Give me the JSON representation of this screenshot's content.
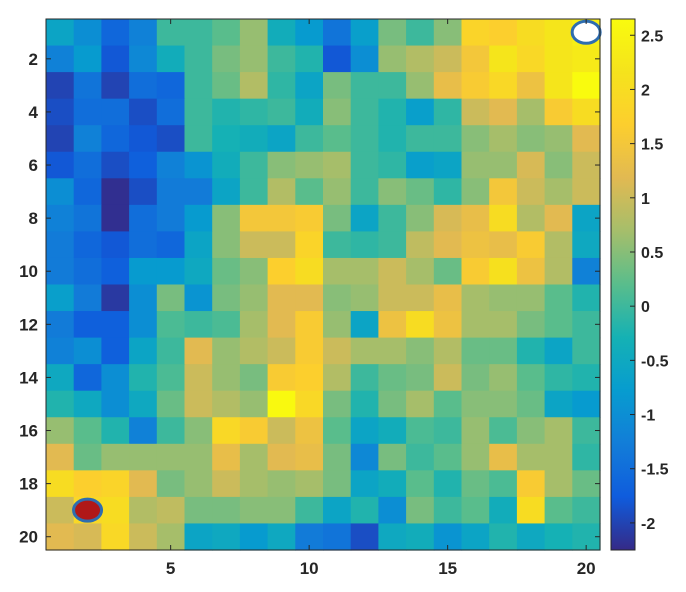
{
  "chart_data": {
    "type": "heatmap",
    "title": "",
    "xlabel": "",
    "ylabel": "",
    "x_ticks": [
      "5",
      "10",
      "15",
      "20"
    ],
    "y_ticks": [
      "2",
      "4",
      "6",
      "8",
      "10",
      "12",
      "14",
      "16",
      "18",
      "20"
    ],
    "xlim": [
      0.5,
      20.5
    ],
    "ylim": [
      0.5,
      20.5
    ],
    "y_direction": "reversed",
    "colorbar": {
      "colormap": "parula",
      "limits": [
        -2.25,
        2.65
      ],
      "ticks": [
        "2.5",
        "2",
        "1.5",
        "1",
        "0.5",
        "0",
        "-0.5",
        "-1",
        "-1.5",
        "-2"
      ],
      "tick_values": [
        2.5,
        2,
        1.5,
        1,
        0.5,
        0,
        -0.5,
        -1,
        -1.5,
        -2
      ]
    },
    "markers": [
      {
        "name": "start",
        "col": 2,
        "row": 19,
        "fill": "#b01818",
        "edge": "#2e6db0"
      },
      {
        "name": "goal",
        "col": 20,
        "row": 1,
        "fill": "#ffffff",
        "edge": "#2e6db0"
      }
    ],
    "values": [
      [
        -0.6,
        -1.0,
        -1.6,
        -1.2,
        0.0,
        0.0,
        0.2,
        0.6,
        -0.4,
        -0.8,
        -1.4,
        -0.7,
        0.4,
        0.0,
        0.5,
        1.8,
        1.7,
        2.0,
        2.2,
        2.4
      ],
      [
        -1.2,
        -0.8,
        -1.8,
        -1.1,
        -0.4,
        0.0,
        0.4,
        0.6,
        0.0,
        -0.2,
        -1.8,
        -1.0,
        0.6,
        0.8,
        1.0,
        1.5,
        2.2,
        1.9,
        2.2,
        2.3
      ],
      [
        -2.0,
        -1.4,
        -2.0,
        -1.5,
        -1.6,
        0.0,
        0.3,
        0.8,
        -0.1,
        -0.6,
        0.4,
        0.0,
        0.0,
        0.6,
        1.3,
        1.6,
        1.9,
        1.4,
        2.2,
        2.7
      ],
      [
        -1.9,
        -1.5,
        -1.5,
        -1.9,
        -1.5,
        0.0,
        -0.2,
        -0.1,
        0.0,
        -0.4,
        0.5,
        0.0,
        -0.2,
        -0.7,
        -0.1,
        1.0,
        1.2,
        0.7,
        1.6,
        2.0
      ],
      [
        -2.0,
        -1.2,
        -1.6,
        -1.8,
        -1.9,
        0.0,
        -0.3,
        -0.4,
        -0.6,
        0.0,
        0.2,
        0.0,
        -0.2,
        0.0,
        0.0,
        0.5,
        0.7,
        0.5,
        0.6,
        1.2
      ],
      [
        -1.8,
        -1.5,
        -1.9,
        -1.7,
        -1.2,
        -0.9,
        -0.4,
        0.0,
        0.5,
        0.6,
        0.7,
        0.0,
        -0.1,
        -0.7,
        -0.6,
        0.6,
        0.6,
        1.1,
        0.5,
        1.0
      ],
      [
        -1.0,
        -1.6,
        -2.2,
        -1.9,
        -1.3,
        -1.3,
        -0.6,
        0.0,
        0.8,
        0.2,
        0.6,
        0.0,
        0.5,
        0.3,
        -0.1,
        0.5,
        1.5,
        1.0,
        0.7,
        1.0
      ],
      [
        -1.2,
        -1.4,
        -2.2,
        -1.5,
        -1.3,
        -0.8,
        0.5,
        1.5,
        1.5,
        1.6,
        0.4,
        -0.6,
        0.0,
        0.5,
        1.1,
        1.3,
        2.0,
        0.8,
        1.2,
        -0.6
      ],
      [
        -1.3,
        -1.6,
        -1.8,
        -1.5,
        -1.6,
        -0.6,
        0.5,
        1.0,
        1.0,
        1.8,
        0.0,
        -0.1,
        0.0,
        0.9,
        1.2,
        1.4,
        1.3,
        1.6,
        0.8,
        -0.5
      ],
      [
        -1.3,
        -1.5,
        -1.7,
        -0.8,
        -0.8,
        -0.5,
        0.3,
        0.5,
        1.7,
        2.0,
        0.7,
        0.7,
        1.0,
        0.7,
        0.3,
        1.6,
        2.1,
        1.4,
        0.8,
        -1.2
      ],
      [
        -0.7,
        -1.3,
        -2.1,
        -1.0,
        0.4,
        -0.9,
        0.4,
        0.6,
        1.2,
        1.2,
        0.5,
        0.6,
        1.0,
        1.0,
        1.3,
        0.7,
        0.6,
        0.6,
        0.2,
        -0.2
      ],
      [
        -1.3,
        -1.7,
        -1.7,
        -1.0,
        0.1,
        0.0,
        0.1,
        0.7,
        1.2,
        1.6,
        0.6,
        -0.6,
        1.4,
        2.0,
        1.4,
        0.7,
        0.7,
        0.4,
        0.2,
        0.0
      ],
      [
        -1.2,
        -1.0,
        -1.7,
        -0.6,
        0.0,
        1.2,
        0.6,
        0.8,
        1.0,
        1.6,
        1.0,
        0.7,
        0.7,
        0.5,
        0.8,
        0.3,
        0.3,
        -0.2,
        -0.6,
        0.0
      ],
      [
        -0.5,
        -1.6,
        -1.0,
        -0.2,
        0.1,
        1.0,
        0.6,
        0.4,
        1.6,
        1.7,
        0.8,
        0.0,
        0.3,
        0.4,
        1.0,
        0.4,
        0.6,
        0.2,
        -0.1,
        -0.2
      ],
      [
        -0.2,
        -0.5,
        -1.0,
        -0.5,
        0.3,
        1.0,
        0.8,
        0.6,
        2.6,
        1.9,
        0.4,
        -0.2,
        0.4,
        0.7,
        0.2,
        0.5,
        0.5,
        0.3,
        -0.6,
        -0.8
      ],
      [
        0.6,
        0.2,
        -0.2,
        -1.2,
        0.0,
        0.5,
        1.9,
        1.6,
        1.0,
        1.4,
        0.2,
        -0.6,
        -0.4,
        0.1,
        0.0,
        0.6,
        0.1,
        0.5,
        0.7,
        0.0
      ],
      [
        1.2,
        0.3,
        0.6,
        0.6,
        0.6,
        0.6,
        1.3,
        0.7,
        1.2,
        1.3,
        0.4,
        -1.1,
        0.4,
        0.0,
        0.2,
        0.6,
        1.3,
        0.7,
        0.7,
        -0.1
      ],
      [
        2.0,
        1.7,
        1.8,
        1.2,
        0.4,
        0.6,
        1.0,
        0.7,
        0.6,
        0.7,
        0.4,
        -0.6,
        -0.4,
        0.2,
        -0.2,
        0.3,
        0.1,
        1.6,
        0.7,
        0.3
      ],
      [
        1.0,
        1.9,
        2.0,
        0.8,
        0.9,
        0.4,
        0.4,
        0.5,
        0.5,
        0.0,
        -0.6,
        -0.2,
        -1.0,
        0.4,
        0.0,
        0.2,
        -0.4,
        2.0,
        0.2,
        0.0
      ],
      [
        1.2,
        1.1,
        1.9,
        1.0,
        0.7,
        -0.6,
        -0.5,
        -0.8,
        -0.5,
        -1.3,
        -1.4,
        -1.9,
        -0.5,
        -0.4,
        -0.9,
        -0.6,
        -0.2,
        -0.5,
        -0.3,
        -0.2
      ]
    ]
  }
}
